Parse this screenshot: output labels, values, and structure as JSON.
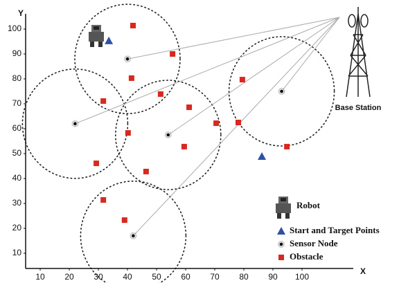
{
  "chart_data": {
    "type": "scatter",
    "xlabel": "X",
    "ylabel": "Y",
    "robot_label": "Robot",
    "base_station_label": "Base Station",
    "xlim": [
      5,
      117
    ],
    "ylim": [
      4,
      106
    ],
    "xticks": [
      10,
      20,
      30,
      40,
      50,
      60,
      70,
      80,
      90,
      100
    ],
    "yticks": [
      10,
      20,
      30,
      40,
      50,
      60,
      70,
      80,
      90,
      100
    ],
    "series": [
      {
        "name": "Start and Target Points",
        "color": "#2f4fa8",
        "marker": "triangle",
        "x": [
          33.6,
          86.2
        ],
        "values": [
          95.3,
          48.9
        ]
      },
      {
        "name": "Sensor Node",
        "color": "#111111",
        "marker": "dot",
        "x": [
          40,
          22,
          54,
          93,
          42
        ],
        "values": [
          88,
          62,
          57.5,
          75,
          17
        ]
      },
      {
        "name": "Obstacle",
        "color": "#d8281f",
        "marker": "square",
        "x": [
          41.9,
          55.5,
          41.4,
          51.4,
          31.7,
          61.2,
          79.5,
          70.5,
          78.1,
          40.2,
          59.5,
          94.8,
          29.3,
          46.4,
          31.7,
          39.0
        ],
        "values": [
          101.4,
          90,
          80.3,
          73.9,
          71.1,
          68.6,
          79.7,
          62.2,
          62.5,
          58.3,
          52.8,
          52.8,
          46.1,
          42.8,
          31.4,
          23.3
        ]
      }
    ]
  }
}
